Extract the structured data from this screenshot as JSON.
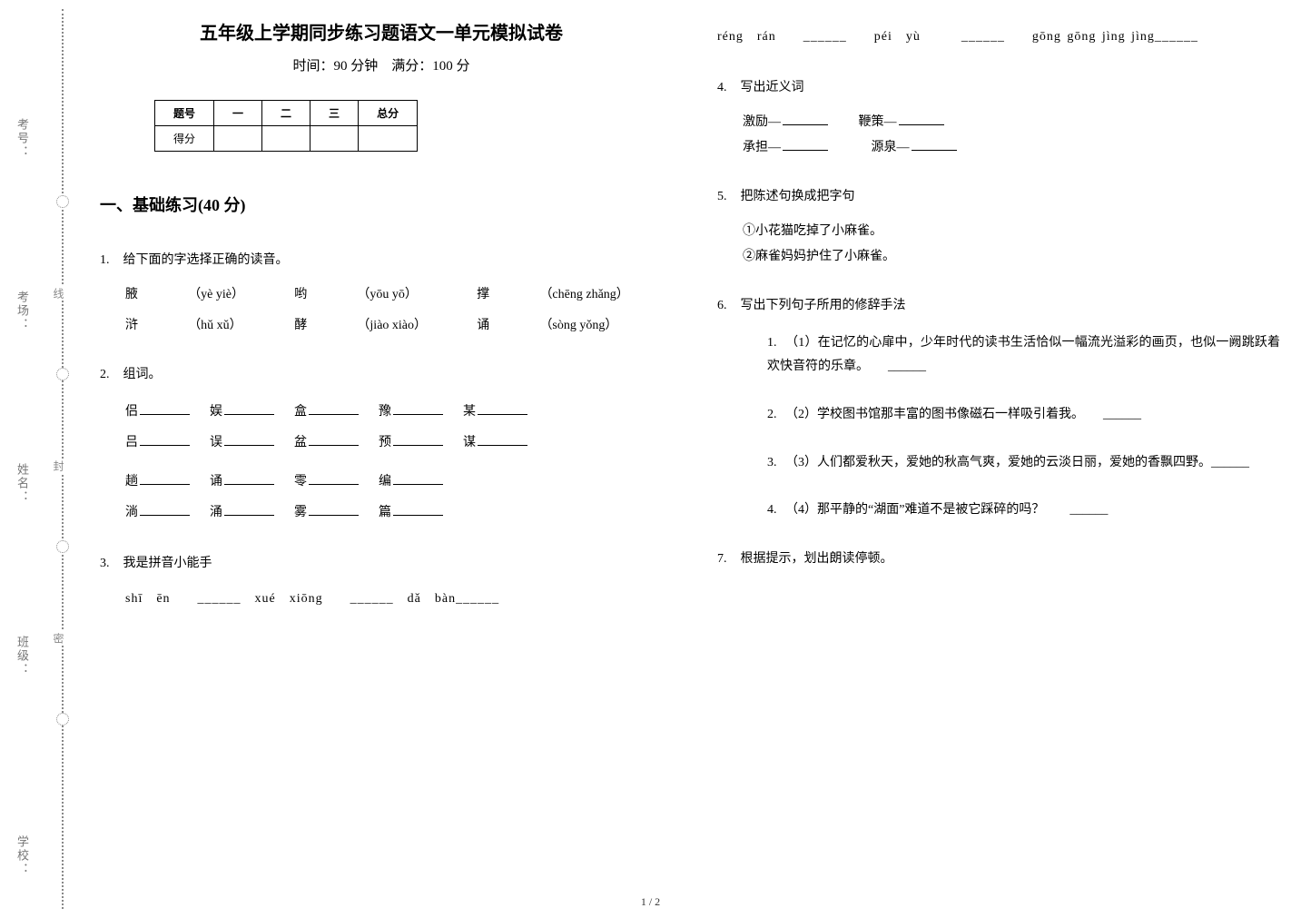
{
  "binding": {
    "labels": [
      "考号：",
      "考场：",
      "姓名：",
      "班级：",
      "学校："
    ],
    "segs": [
      "线",
      "封",
      "密"
    ]
  },
  "header": {
    "title": "五年级上学期同步练习题语文一单元模拟试卷",
    "subtitle": "时间：90 分钟　满分：100 分"
  },
  "score_table": {
    "cols": [
      "题号",
      "一",
      "二",
      "三",
      "总分"
    ],
    "row_label": "得分"
  },
  "section1_heading": "一、基础练习(40 分)",
  "q1": {
    "num": "1.",
    "text": "给下面的字选择正确的读音。",
    "rows": [
      [
        "腋",
        "（yè yiè）",
        "哟",
        "（yōu yō）",
        "撑",
        "（chēng zhǎng）"
      ],
      [
        "浒",
        "（hǔ xǔ）",
        "酵",
        "（jiào xiào）",
        "诵",
        "（sòng yǒng）"
      ]
    ]
  },
  "q2": {
    "num": "2.",
    "text": "组词。",
    "lines": [
      [
        "侣",
        "娱",
        "盒",
        "豫",
        "某"
      ],
      [
        "吕",
        "误",
        "盆",
        "预",
        "谋"
      ],
      [
        "趟",
        "诵",
        "零",
        "编",
        ""
      ],
      [
        "淌",
        "涌",
        "雾",
        "篇",
        ""
      ]
    ]
  },
  "q3": {
    "num": "3.",
    "text": "我是拼音小能手",
    "lines": [
      "shī　ēn　　______　xué　xiōng　　______　dǎ　bàn______",
      "réng　rán　　______　　péi　yù　　　______　　gōng gōng jìng jìng______"
    ]
  },
  "q4": {
    "num": "4.",
    "text": "写出近义词",
    "pairs_l": [
      "激励—",
      "承担—"
    ],
    "pairs_r": [
      "鞭策—",
      "源泉—"
    ]
  },
  "q5": {
    "num": "5.",
    "text": "把陈述句换成把字句",
    "items": [
      "①小花猫吃掉了小麻雀。",
      "②麻雀妈妈护住了小麻雀。"
    ]
  },
  "q6": {
    "num": "6.",
    "text": "写出下列句子所用的修辞手法",
    "subs": [
      {
        "n": "1.",
        "t": "（1）在记忆的心扉中，少年时代的读书生活恰似一幅流光溢彩的画页，也似一阙跳跃着欢快音符的乐章。　　______"
      },
      {
        "n": "2.",
        "t": "（2）学校图书馆那丰富的图书像磁石一样吸引着我。　　______"
      },
      {
        "n": "3.",
        "t": "（3）人们都爱秋天，爱她的秋高气爽，爱她的云淡日丽，爱她的香飘四野。______"
      },
      {
        "n": "4.",
        "t": "（4）那平静的“湖面”难道不是被它踩碎的吗？　　______"
      }
    ]
  },
  "q7": {
    "num": "7.",
    "text": "根据提示，划出朗读停顿。"
  },
  "page_num": "1 / 2"
}
